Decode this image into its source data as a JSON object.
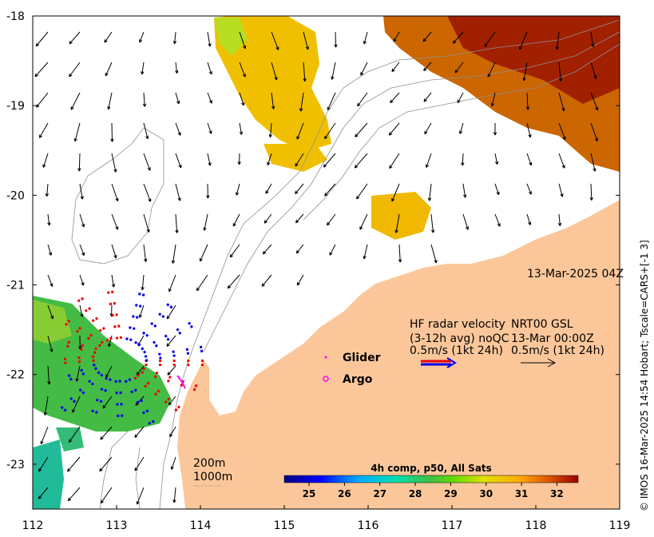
{
  "map": {
    "timestamp": "13-Mar-2025 04Z",
    "credit": "© IMOS 16-Mar-2025 14:54 Hobart; Tscale=CARS+[-1 3]",
    "x_axis": {
      "min": 112,
      "max": 119,
      "ticks": [
        "112",
        "113",
        "114",
        "115",
        "116",
        "117",
        "118",
        "119"
      ]
    },
    "y_axis": {
      "min": -23.5,
      "max": -18,
      "ticks": [
        "-18",
        "-19",
        "-20",
        "-21",
        "-22",
        "-23"
      ]
    },
    "legend": {
      "hf_line1": "HF radar velocity",
      "hf_line2": "(3-12h avg) noQC",
      "hf_line3": "0.5m/s (1kt 24h)",
      "nrt_line1": "NRT00 GSL",
      "nrt_line2": "13-Mar 00:00Z",
      "nrt_line3": "0.5m/s (1kt 24h)",
      "glider": "Glider",
      "argo": "Argo"
    },
    "depth_labels": {
      "d200": "200m",
      "d1000": "1000m"
    },
    "colorbar": {
      "title": "4h comp, p50, All Sats",
      "min": 24.3,
      "max": 32.6,
      "ticks": [
        "25",
        "26",
        "27",
        "28",
        "29",
        "30",
        "31",
        "32"
      ]
    },
    "colors": {
      "land": "#fbc79a",
      "hf_radar_red": "#ee0000",
      "hf_radar_blue": "#0000ee",
      "glider": "#ff00ff",
      "argo": "#ff00ff"
    }
  }
}
